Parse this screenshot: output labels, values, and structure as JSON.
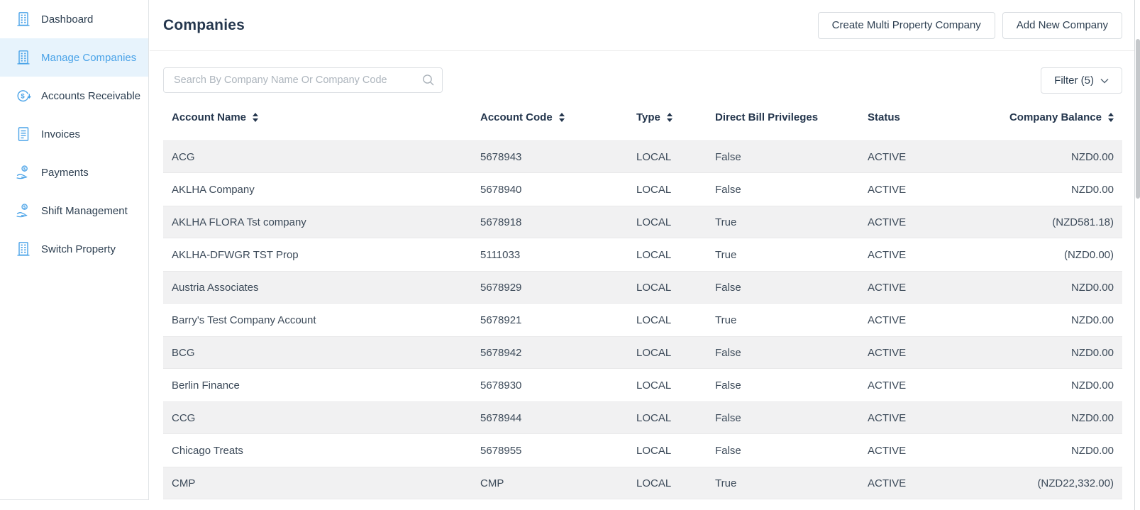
{
  "colors": {
    "accent": "#4AA3E8",
    "accent_bg": "#E7F3FC",
    "navy": "#2C3E50",
    "row_alt": "#F1F1F2"
  },
  "sidebar": {
    "items": [
      {
        "label": "Dashboard",
        "icon": "building-icon",
        "active": false
      },
      {
        "label": "Manage Companies",
        "icon": "building-icon",
        "active": true
      },
      {
        "label": "Accounts Receivable",
        "icon": "accounts-receivable-icon",
        "active": false
      },
      {
        "label": "Invoices",
        "icon": "invoice-icon",
        "active": false
      },
      {
        "label": "Payments",
        "icon": "payments-icon",
        "active": false
      },
      {
        "label": "Shift Management",
        "icon": "payments-icon",
        "active": false
      },
      {
        "label": "Switch Property",
        "icon": "building-icon",
        "active": false
      }
    ]
  },
  "header": {
    "title": "Companies",
    "buttons": [
      {
        "label": "Create Multi Property Company"
      },
      {
        "label": "Add New Company"
      }
    ]
  },
  "toolbar": {
    "search_placeholder": "Search By Company Name Or Company Code",
    "filter_label": "Filter (5)"
  },
  "table": {
    "columns": [
      {
        "label": "Account Name",
        "sortable": true,
        "align": "left"
      },
      {
        "label": "Account Code",
        "sortable": true,
        "align": "left"
      },
      {
        "label": "Type",
        "sortable": true,
        "align": "left"
      },
      {
        "label": "Direct Bill Privileges",
        "sortable": false,
        "align": "left"
      },
      {
        "label": "Status",
        "sortable": false,
        "align": "left"
      },
      {
        "label": "Company Balance",
        "sortable": true,
        "align": "right"
      }
    ],
    "rows": [
      [
        "ACG",
        "5678943",
        "LOCAL",
        "False",
        "ACTIVE",
        "NZD0.00"
      ],
      [
        "AKLHA Company",
        "5678940",
        "LOCAL",
        "False",
        "ACTIVE",
        "NZD0.00"
      ],
      [
        "AKLHA FLORA Tst company",
        "5678918",
        "LOCAL",
        "True",
        "ACTIVE",
        "(NZD581.18)"
      ],
      [
        "AKLHA-DFWGR TST Prop",
        "5111033",
        "LOCAL",
        "True",
        "ACTIVE",
        "(NZD0.00)"
      ],
      [
        "Austria Associates",
        "5678929",
        "LOCAL",
        "False",
        "ACTIVE",
        "NZD0.00"
      ],
      [
        "Barry's Test Company Account",
        "5678921",
        "LOCAL",
        "True",
        "ACTIVE",
        "NZD0.00"
      ],
      [
        "BCG",
        "5678942",
        "LOCAL",
        "False",
        "ACTIVE",
        "NZD0.00"
      ],
      [
        "Berlin Finance",
        "5678930",
        "LOCAL",
        "False",
        "ACTIVE",
        "NZD0.00"
      ],
      [
        "CCG",
        "5678944",
        "LOCAL",
        "False",
        "ACTIVE",
        "NZD0.00"
      ],
      [
        "Chicago Treats",
        "5678955",
        "LOCAL",
        "False",
        "ACTIVE",
        "NZD0.00"
      ],
      [
        "CMP",
        "CMP",
        "LOCAL",
        "True",
        "ACTIVE",
        "(NZD22,332.00)"
      ]
    ]
  }
}
